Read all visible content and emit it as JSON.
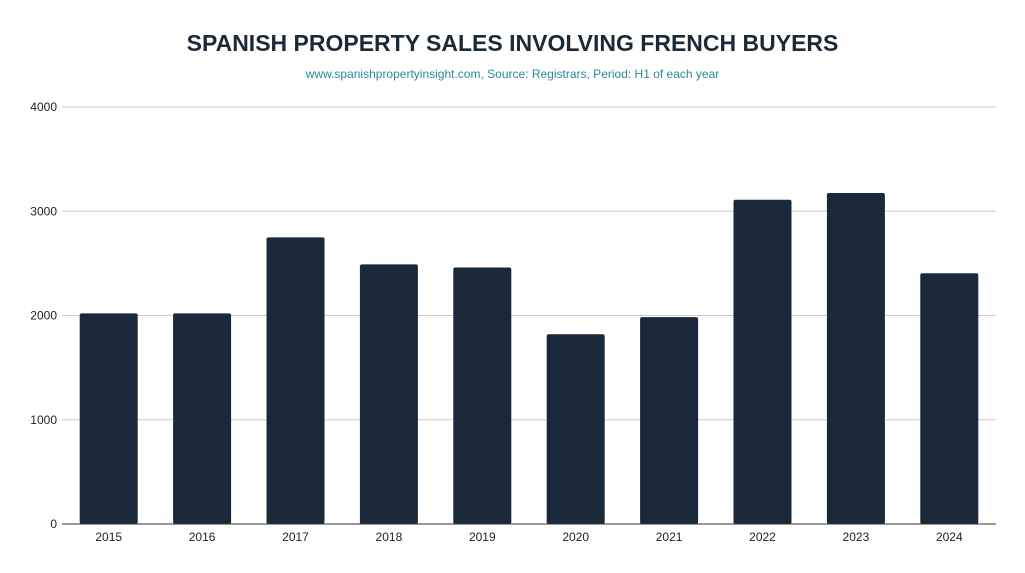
{
  "chart_data": {
    "type": "bar",
    "title": "SPANISH PROPERTY SALES INVOLVING FRENCH BUYERS",
    "subtitle": "www.spanishpropertyinsight.com, Source: Registrars, Period: H1 of each year",
    "categories": [
      "2015",
      "2016",
      "2017",
      "2018",
      "2019",
      "2020",
      "2021",
      "2022",
      "2023",
      "2024"
    ],
    "values": [
      2020,
      2020,
      2750,
      2490,
      2460,
      1820,
      1985,
      3110,
      3175,
      2405
    ],
    "ylim": [
      0,
      4000
    ],
    "yticks": [
      "0",
      "1000",
      "2000",
      "3000",
      "4000"
    ],
    "grid": true,
    "colors": {
      "bar": "#19293a",
      "title": "#1b2a38",
      "subtitle": "#2a8a9a",
      "grid": "#cccccc"
    }
  }
}
